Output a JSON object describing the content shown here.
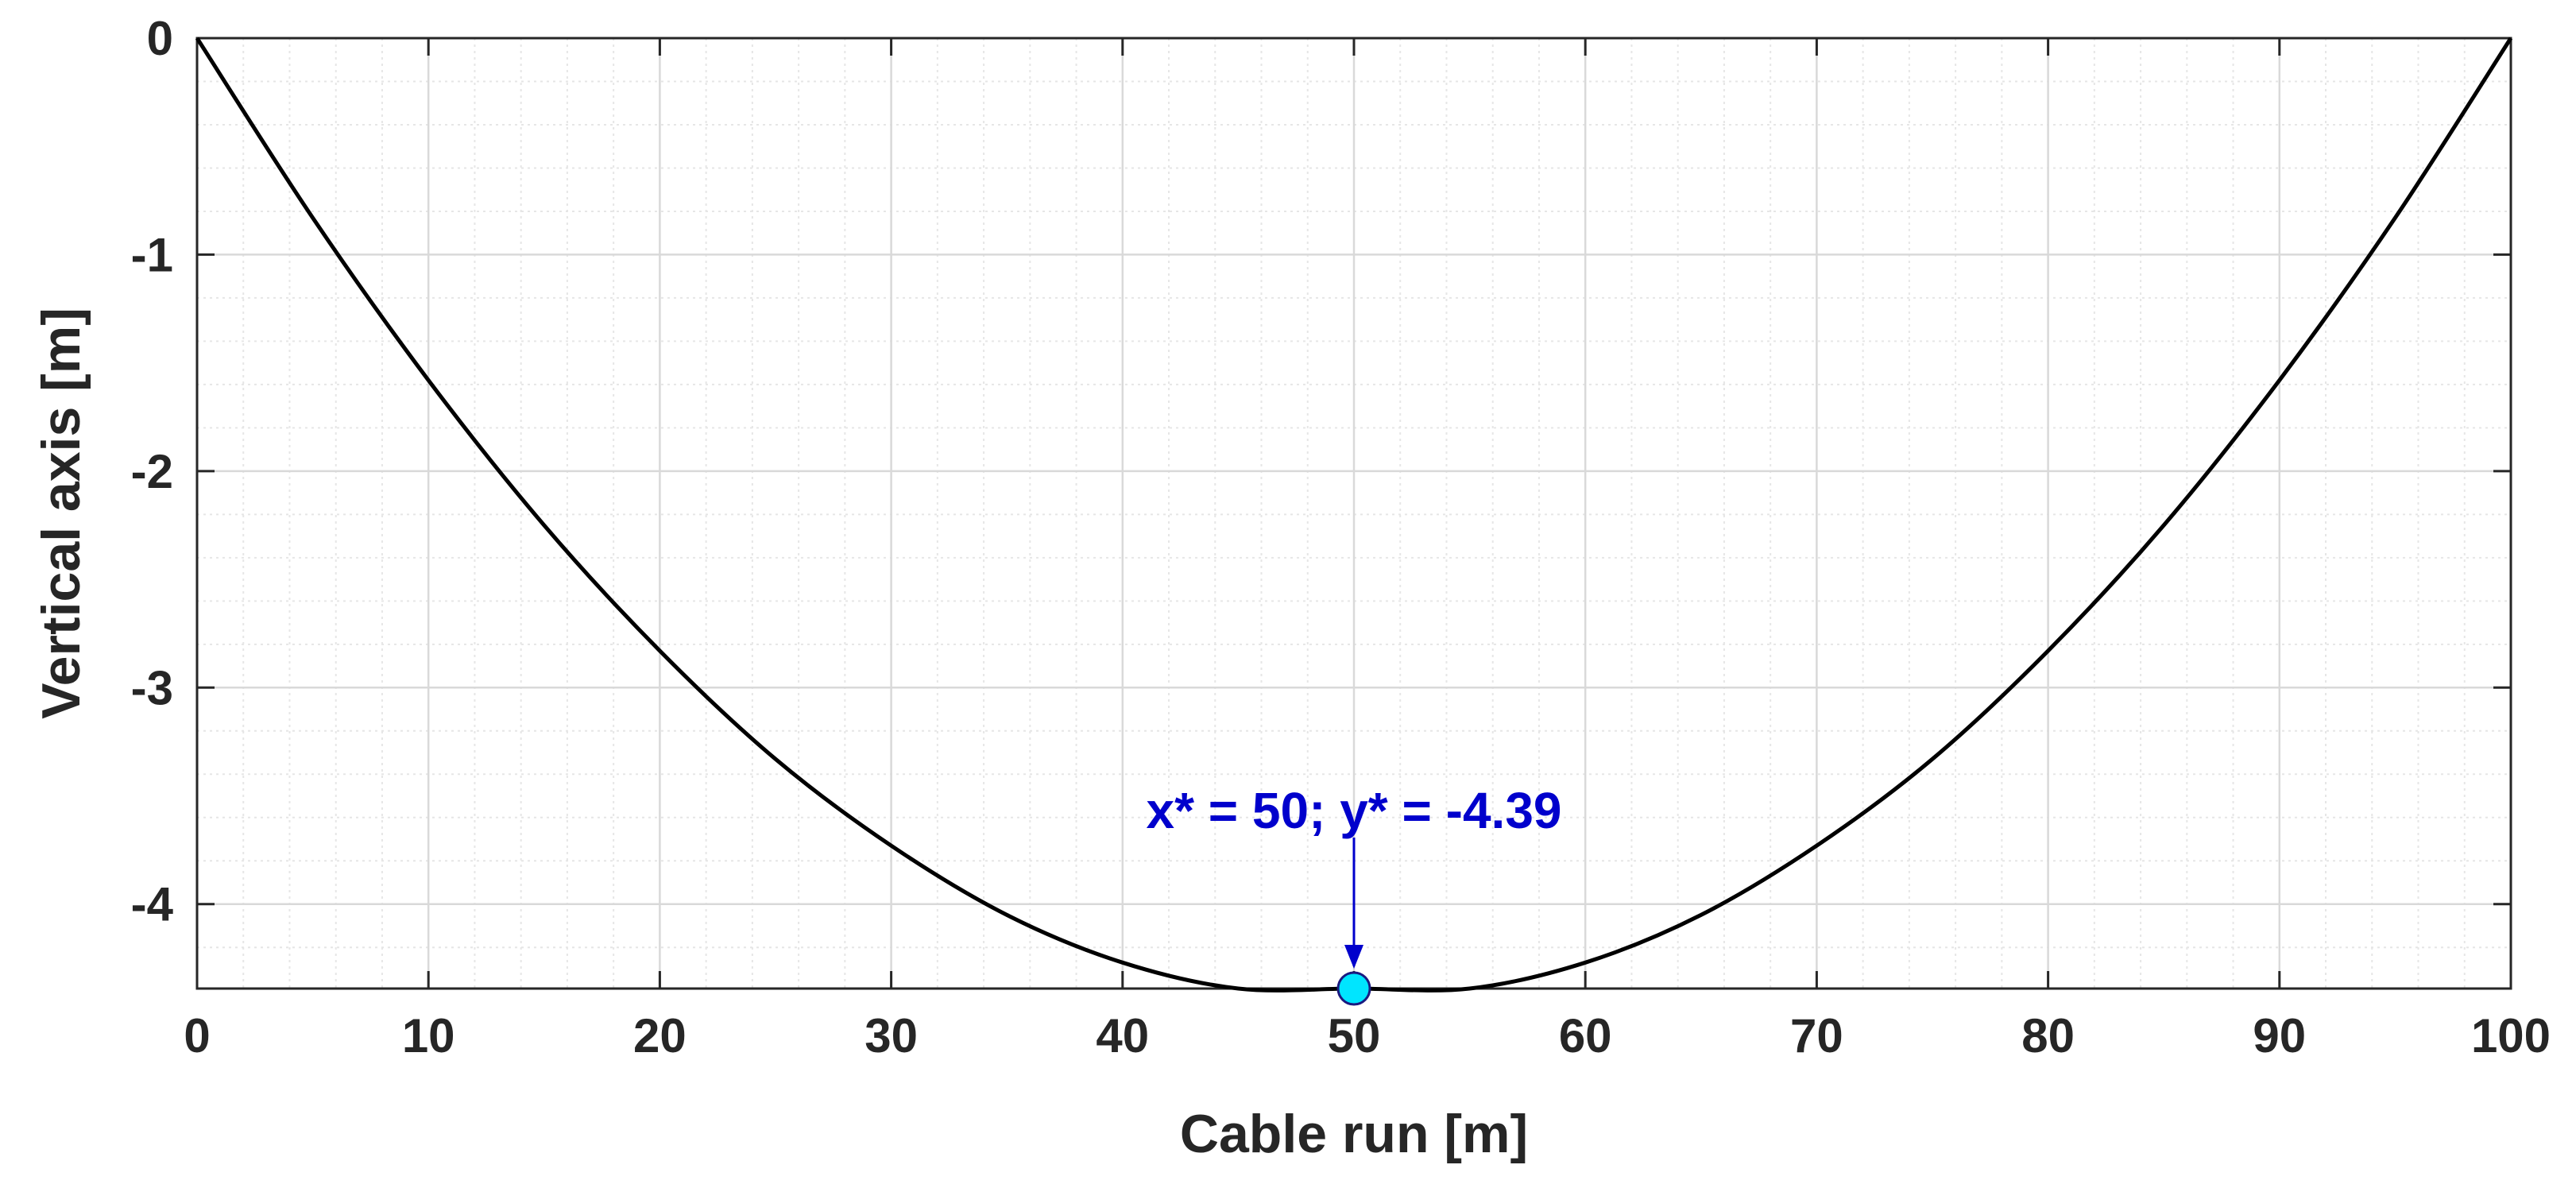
{
  "chart_data": {
    "type": "line",
    "title": "",
    "xlabel": "Cable run [m]",
    "ylabel": "Vertical axis [m]",
    "xlim": [
      0,
      100
    ],
    "ylim": [
      -4.39,
      0
    ],
    "x_ticks": [
      0,
      10,
      20,
      30,
      40,
      50,
      60,
      70,
      80,
      90,
      100
    ],
    "y_ticks": [
      0,
      -1,
      -2,
      -3,
      -4
    ],
    "x_tick_labels": [
      "0",
      "10",
      "20",
      "30",
      "40",
      "50",
      "60",
      "70",
      "80",
      "90",
      "100"
    ],
    "y_tick_labels": [
      "0",
      "-1",
      "-2",
      "-3",
      "-4"
    ],
    "grid": true,
    "minor_grid": true,
    "series": [
      {
        "color": "#000000",
        "x": [
          0,
          5,
          10,
          15,
          20,
          25,
          30,
          35,
          40,
          45,
          50,
          55,
          60,
          65,
          70,
          75,
          80,
          85,
          90,
          95,
          100
        ],
        "y": [
          0,
          -0.83,
          -1.58,
          -2.25,
          -2.83,
          -3.33,
          -3.73,
          -4.05,
          -4.27,
          -4.39,
          -4.39,
          -4.39,
          -4.27,
          -4.05,
          -3.73,
          -3.33,
          -2.83,
          -2.25,
          -1.58,
          -0.83,
          0
        ]
      }
    ],
    "marker": {
      "x": 50,
      "y": -4.39,
      "fill": "#00e5ff",
      "edge": "#1a1a80"
    },
    "annotation": {
      "text": "x* = 50; y* = -4.39",
      "color": "#0000cc",
      "target_x": 50,
      "target_y": -4.39
    }
  }
}
